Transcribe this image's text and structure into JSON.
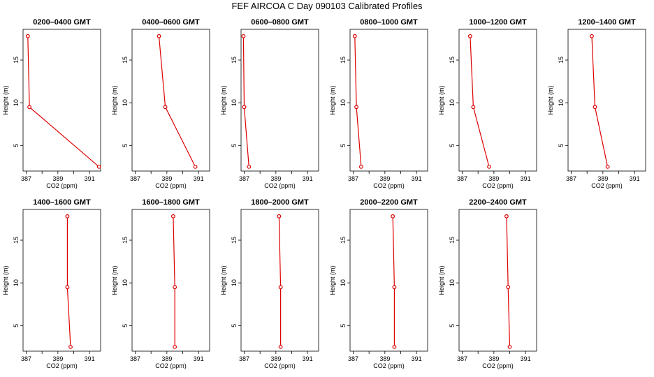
{
  "title": "FEF  AIRCOA C  Day 090103  Calibrated Profiles",
  "colors": {
    "series": "#dd0000",
    "frame": "#000000"
  },
  "chart_data": [
    {
      "type": "line",
      "title": "0200–0400 GMT",
      "xlabel": "CO2 (ppm)",
      "ylabel": "Height (m)",
      "xlim": [
        386.8,
        391.7
      ],
      "ylim": [
        2.0,
        18.6
      ],
      "xticks": [
        387,
        388,
        389,
        390,
        391
      ],
      "xtick_labels": [
        "387",
        "389",
        "391"
      ],
      "yticks": [
        5,
        10,
        15
      ],
      "points": [
        {
          "x": 387.1,
          "y": 17.8
        },
        {
          "x": 387.2,
          "y": 9.5
        },
        {
          "x": 391.6,
          "y": 2.5
        }
      ]
    },
    {
      "type": "line",
      "title": "0400–0600 GMT",
      "xlabel": "CO2 (ppm)",
      "ylabel": "Height (m)",
      "xlim": [
        386.8,
        391.7
      ],
      "ylim": [
        2.0,
        18.6
      ],
      "xticks": [
        387,
        388,
        389,
        390,
        391
      ],
      "xtick_labels": [
        "387",
        "389",
        "391"
      ],
      "yticks": [
        5,
        10,
        15
      ],
      "points": [
        {
          "x": 388.5,
          "y": 17.8
        },
        {
          "x": 388.9,
          "y": 9.5
        },
        {
          "x": 390.8,
          "y": 2.5
        }
      ]
    },
    {
      "type": "line",
      "title": "0600–0800 GMT",
      "xlabel": "CO2 (ppm)",
      "ylabel": "Height (m)",
      "xlim": [
        386.8,
        391.7
      ],
      "ylim": [
        2.0,
        18.6
      ],
      "xticks": [
        387,
        388,
        389,
        390,
        391
      ],
      "xtick_labels": [
        "387",
        "389",
        "391"
      ],
      "yticks": [
        5,
        10,
        15
      ],
      "points": [
        {
          "x": 386.95,
          "y": 17.8
        },
        {
          "x": 387.0,
          "y": 9.5
        },
        {
          "x": 387.3,
          "y": 2.5
        }
      ]
    },
    {
      "type": "line",
      "title": "0800–1000 GMT",
      "xlabel": "CO2 (ppm)",
      "ylabel": "Height (m)",
      "xlim": [
        386.8,
        391.7
      ],
      "ylim": [
        2.0,
        18.6
      ],
      "xticks": [
        387,
        388,
        389,
        390,
        391
      ],
      "xtick_labels": [
        "387",
        "389",
        "391"
      ],
      "yticks": [
        5,
        10,
        15
      ],
      "points": [
        {
          "x": 387.1,
          "y": 17.8
        },
        {
          "x": 387.2,
          "y": 9.5
        },
        {
          "x": 387.5,
          "y": 2.5
        }
      ]
    },
    {
      "type": "line",
      "title": "1000–1200 GMT",
      "xlabel": "CO2 (ppm)",
      "ylabel": "Height (m)",
      "xlim": [
        386.8,
        391.7
      ],
      "ylim": [
        2.0,
        18.6
      ],
      "xticks": [
        387,
        388,
        389,
        390,
        391
      ],
      "xtick_labels": [
        "387",
        "389",
        "391"
      ],
      "yticks": [
        5,
        10,
        15
      ],
      "points": [
        {
          "x": 387.5,
          "y": 17.8
        },
        {
          "x": 387.7,
          "y": 9.5
        },
        {
          "x": 388.7,
          "y": 2.5
        }
      ]
    },
    {
      "type": "line",
      "title": "1200–1400 GMT",
      "xlabel": "CO2 (ppm)",
      "ylabel": "Height (m)",
      "xlim": [
        386.8,
        391.7
      ],
      "ylim": [
        2.0,
        18.6
      ],
      "xticks": [
        387,
        388,
        389,
        390,
        391
      ],
      "xtick_labels": [
        "387",
        "389",
        "391"
      ],
      "yticks": [
        5,
        10,
        15
      ],
      "points": [
        {
          "x": 388.3,
          "y": 17.8
        },
        {
          "x": 388.5,
          "y": 9.5
        },
        {
          "x": 389.3,
          "y": 2.5
        }
      ]
    },
    {
      "type": "line",
      "title": "1400–1600 GMT",
      "xlabel": "CO2 (ppm)",
      "ylabel": "Height (m)",
      "xlim": [
        386.8,
        391.7
      ],
      "ylim": [
        2.0,
        18.6
      ],
      "xticks": [
        387,
        388,
        389,
        390,
        391
      ],
      "xtick_labels": [
        "387",
        "389",
        "391"
      ],
      "yticks": [
        5,
        10,
        15
      ],
      "points": [
        {
          "x": 389.6,
          "y": 17.8
        },
        {
          "x": 389.6,
          "y": 9.5
        },
        {
          "x": 389.8,
          "y": 2.5
        }
      ]
    },
    {
      "type": "line",
      "title": "1600–1800 GMT",
      "xlabel": "CO2 (ppm)",
      "ylabel": "Height (m)",
      "xlim": [
        386.8,
        391.7
      ],
      "ylim": [
        2.0,
        18.6
      ],
      "xticks": [
        387,
        388,
        389,
        390,
        391
      ],
      "xtick_labels": [
        "387",
        "389",
        "391"
      ],
      "yticks": [
        5,
        10,
        15
      ],
      "points": [
        {
          "x": 389.4,
          "y": 17.8
        },
        {
          "x": 389.5,
          "y": 9.5
        },
        {
          "x": 389.5,
          "y": 2.5
        }
      ]
    },
    {
      "type": "line",
      "title": "1800–2000 GMT",
      "xlabel": "CO2 (ppm)",
      "ylabel": "Height (m)",
      "xlim": [
        386.8,
        391.7
      ],
      "ylim": [
        2.0,
        18.6
      ],
      "xticks": [
        387,
        388,
        389,
        390,
        391
      ],
      "xtick_labels": [
        "387",
        "389",
        "391"
      ],
      "yticks": [
        5,
        10,
        15
      ],
      "points": [
        {
          "x": 389.2,
          "y": 17.8
        },
        {
          "x": 389.3,
          "y": 9.5
        },
        {
          "x": 389.3,
          "y": 2.5
        }
      ]
    },
    {
      "type": "line",
      "title": "2000–2200 GMT",
      "xlabel": "CO2 (ppm)",
      "ylabel": "Height (m)",
      "xlim": [
        386.8,
        391.7
      ],
      "ylim": [
        2.0,
        18.6
      ],
      "xticks": [
        387,
        388,
        389,
        390,
        391
      ],
      "xtick_labels": [
        "387",
        "389",
        "391"
      ],
      "yticks": [
        5,
        10,
        15
      ],
      "points": [
        {
          "x": 389.5,
          "y": 17.8
        },
        {
          "x": 389.6,
          "y": 9.5
        },
        {
          "x": 389.6,
          "y": 2.5
        }
      ]
    },
    {
      "type": "line",
      "title": "2200–2400 GMT",
      "xlabel": "CO2 (ppm)",
      "ylabel": "Height (m)",
      "xlim": [
        386.8,
        391.7
      ],
      "ylim": [
        2.0,
        18.6
      ],
      "xticks": [
        387,
        388,
        389,
        390,
        391
      ],
      "xtick_labels": [
        "387",
        "389",
        "391"
      ],
      "yticks": [
        5,
        10,
        15
      ],
      "points": [
        {
          "x": 389.8,
          "y": 17.8
        },
        {
          "x": 389.9,
          "y": 9.5
        },
        {
          "x": 390.0,
          "y": 2.5
        }
      ]
    }
  ]
}
